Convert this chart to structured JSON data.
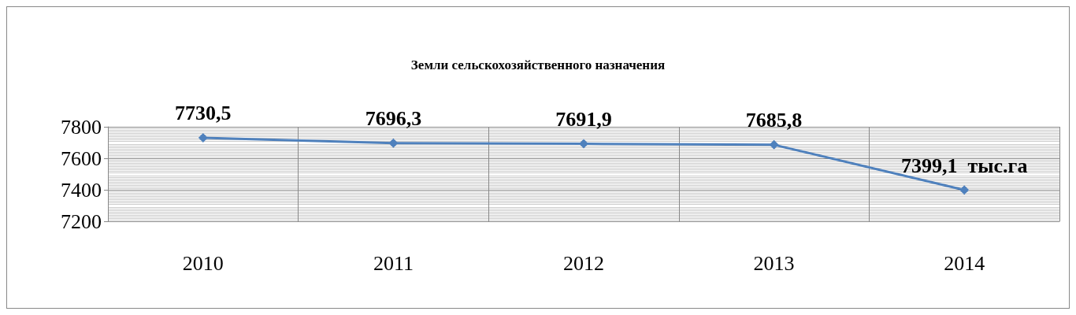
{
  "chart_data": {
    "type": "line",
    "title": "Земли сельскохозяйственного назначения",
    "categories": [
      "2010",
      "2011",
      "2012",
      "2013",
      "2014"
    ],
    "series": [
      {
        "color": "#4f81bd",
        "values": [
          7730.5,
          7696.3,
          7691.9,
          7685.8,
          7399.1
        ],
        "value_labels": [
          "7730,5",
          "7696,3",
          "7691,9",
          "7685,8",
          "7399,1  тыс.га"
        ]
      }
    ],
    "ylim": [
      7200,
      7800
    ],
    "yticks": [
      7200,
      7400,
      7600,
      7800
    ],
    "grid": true,
    "marker": "diamond",
    "line_style": "solid"
  }
}
